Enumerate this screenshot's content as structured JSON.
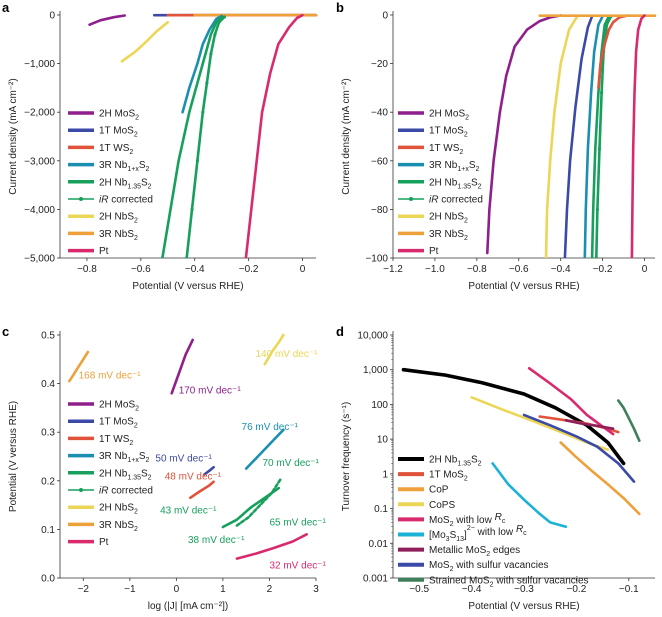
{
  "colors": {
    "2H MoS2": "#8e1f8c",
    "1T MoS2": "#3b4aa6",
    "1T WS2": "#e0523a",
    "3R Nb1+xS2": "#1a8fb0",
    "2H Nb1.35S2": "#17a05c",
    "iR corrected": "#17a05c",
    "2H NbS2": "#ecd657",
    "3R NbS2": "#eea03a",
    "Pt": "#d92a6e",
    "black": "#000000",
    "CoPS": "#ecd657",
    "Mo3S13": "#1ab3d6",
    "Metallic edges": "#8e1f5a",
    "Strained": "#3f7f5a"
  },
  "chart_data": [
    {
      "panel": "a",
      "type": "line",
      "xlabel": "Potential (V versus RHE)",
      "ylabel": "Current density (mA cm⁻²)",
      "xlim": [
        -0.9,
        0.05
      ],
      "ylim": [
        -5000,
        0
      ],
      "xticks": [
        -0.8,
        -0.6,
        -0.4,
        -0.2,
        0
      ],
      "xtick_labels": [
        "−0.8",
        "−0.6",
        "−0.4",
        "−0.2",
        "0"
      ],
      "yticks": [
        0,
        -1000,
        -2000,
        -3000,
        -4000,
        -5000
      ],
      "ytick_labels": [
        "0",
        "−1,000",
        "−2,000",
        "−3,000",
        "−4,000",
        "−5,000"
      ],
      "legend": [
        "2H MoS2",
        "1T MoS2",
        "1T WS2",
        "3R Nb1+xS2",
        "2H Nb1.35S2",
        "iR corrected",
        "2H NbS2",
        "3R NbS2",
        "Pt"
      ],
      "legend_labels": [
        "2H MoS",
        "1T MoS",
        "1T WS",
        "3R Nb",
        "2H Nb",
        "iR corrected",
        "2H NbS",
        "3R NbS",
        "Pt"
      ],
      "series": [
        {
          "name": "2H MoS2",
          "x": [
            -0.79,
            -0.75,
            -0.7,
            -0.66
          ],
          "y": [
            -200,
            -110,
            -45,
            -10
          ]
        },
        {
          "name": "1T MoS2",
          "x": [
            -0.55,
            -0.4,
            -0.25,
            -0.1,
            0.05
          ],
          "y": [
            -5,
            -5,
            -5,
            -5,
            -5
          ]
        },
        {
          "name": "1T WS2",
          "x": [
            -0.5,
            -0.3,
            -0.1,
            0.05
          ],
          "y": [
            -5,
            -5,
            -5,
            -5
          ]
        },
        {
          "name": "2H NbS2",
          "x": [
            -0.67,
            -0.62,
            -0.58,
            -0.54,
            -0.5
          ],
          "y": [
            -950,
            -750,
            -550,
            -330,
            -150
          ]
        },
        {
          "name": "3R NbS2",
          "x": [
            -0.4,
            -0.2,
            0,
            0.05
          ],
          "y": [
            -3,
            -3,
            -3,
            -3
          ]
        },
        {
          "name": "3R Nb1+xS2",
          "x": [
            -0.445,
            -0.42,
            -0.39,
            -0.37,
            -0.345,
            -0.32,
            -0.3
          ],
          "y": [
            -2000,
            -1500,
            -1000,
            -600,
            -300,
            -80,
            -20
          ]
        },
        {
          "name": "2H Nb1.35S2",
          "x": [
            -0.52,
            -0.49,
            -0.46,
            -0.42,
            -0.39,
            -0.36,
            -0.34,
            -0.32,
            -0.3
          ],
          "y": [
            -5000,
            -4000,
            -3000,
            -2000,
            -1400,
            -800,
            -400,
            -150,
            -40
          ]
        },
        {
          "name": "iR corrected",
          "x": [
            -0.43,
            -0.41,
            -0.39,
            -0.37,
            -0.355,
            -0.34,
            -0.325,
            -0.31,
            -0.29
          ],
          "y": [
            -5000,
            -4000,
            -3000,
            -2000,
            -1400,
            -800,
            -400,
            -150,
            -40
          ]
        },
        {
          "name": "Pt",
          "x": [
            -0.21,
            -0.19,
            -0.17,
            -0.15,
            -0.12,
            -0.09,
            -0.05,
            -0.02,
            0.0
          ],
          "y": [
            -5000,
            -4000,
            -3000,
            -2000,
            -1200,
            -600,
            -250,
            -60,
            -5
          ]
        }
      ]
    },
    {
      "panel": "b",
      "type": "line",
      "xlabel": "Potential (V versus RHE)",
      "ylabel": "Current density (mA cm⁻²)",
      "xlim": [
        -1.2,
        0.05
      ],
      "ylim": [
        -100,
        0
      ],
      "xticks": [
        -1.2,
        -1.0,
        -0.8,
        -0.6,
        -0.4,
        -0.2,
        0
      ],
      "xtick_labels": [
        "−1.2",
        "−1.0",
        "−0.8",
        "−0.6",
        "−0.4",
        "−0.2",
        "0"
      ],
      "yticks": [
        0,
        -20,
        -40,
        -60,
        -80,
        -100
      ],
      "ytick_labels": [
        "0",
        "−20",
        "−40",
        "−60",
        "−80",
        "−100"
      ],
      "legend": [
        "2H MoS2",
        "1T MoS2",
        "1T WS2",
        "3R Nb1+xS2",
        "2H Nb1.35S2",
        "iR corrected",
        "2H NbS2",
        "3R NbS2",
        "Pt"
      ],
      "legend_labels": [
        "2H MoS",
        "1T MoS",
        "1T WS",
        "3R Nb",
        "2H Nb",
        "iR corrected",
        "2H NbS",
        "3R NbS",
        "Pt"
      ],
      "series": [
        {
          "name": "2H MoS2",
          "x": [
            -0.75,
            -0.74,
            -0.72,
            -0.69,
            -0.66,
            -0.62,
            -0.56,
            -0.5,
            -0.45,
            -0.4
          ],
          "y": [
            -98,
            -80,
            -60,
            -40,
            -25,
            -13,
            -6,
            -2.5,
            -1,
            -0.2
          ]
        },
        {
          "name": "2H NbS2",
          "x": [
            -0.47,
            -0.465,
            -0.45,
            -0.43,
            -0.4,
            -0.36,
            -0.32
          ],
          "y": [
            -100,
            -80,
            -60,
            -40,
            -20,
            -6,
            -0.5
          ]
        },
        {
          "name": "1T MoS2",
          "x": [
            -0.38,
            -0.37,
            -0.355,
            -0.33,
            -0.3,
            -0.27,
            -0.25
          ],
          "y": [
            -100,
            -80,
            -60,
            -38,
            -18,
            -5,
            -0.5
          ]
        },
        {
          "name": "3R Nb1+xS2",
          "x": [
            -0.285,
            -0.28,
            -0.27,
            -0.255,
            -0.24,
            -0.22,
            -0.2
          ],
          "y": [
            -100,
            -80,
            -55,
            -32,
            -15,
            -4,
            -0.5
          ]
        },
        {
          "name": "2H Nb1.35S2",
          "x": [
            -0.25,
            -0.245,
            -0.235,
            -0.22,
            -0.205,
            -0.19,
            -0.17
          ],
          "y": [
            -100,
            -80,
            -55,
            -32,
            -15,
            -4,
            -0.5
          ]
        },
        {
          "name": "iR corrected",
          "x": [
            -0.23,
            -0.225,
            -0.215,
            -0.205,
            -0.195,
            -0.18,
            -0.16
          ],
          "y": [
            -100,
            -80,
            -55,
            -32,
            -15,
            -4,
            -0.5
          ]
        },
        {
          "name": "1T WS2",
          "x": [
            -0.22,
            -0.21,
            -0.19,
            -0.17,
            -0.15,
            -0.12,
            -0.08
          ],
          "y": [
            -30,
            -20,
            -12,
            -6,
            -3,
            -1,
            -0.2
          ]
        },
        {
          "name": "3R NbS2",
          "x": [
            -0.5,
            -0.3,
            -0.1,
            0.05
          ],
          "y": [
            -0.3,
            -0.3,
            -0.3,
            -0.3
          ]
        },
        {
          "name": "Pt",
          "x": [
            -0.06,
            -0.058,
            -0.054,
            -0.048,
            -0.04,
            -0.03,
            -0.015,
            0.0
          ],
          "y": [
            -100,
            -80,
            -55,
            -32,
            -15,
            -6,
            -1.5,
            -0.2
          ]
        }
      ]
    },
    {
      "panel": "c",
      "type": "line",
      "xlabel": "log (|J| [mA cm⁻²])",
      "ylabel": "Potential (V versus RHE)",
      "xlim": [
        -2.5,
        3
      ],
      "ylim": [
        0,
        0.5
      ],
      "xticks": [
        -2,
        -1,
        0,
        1,
        2,
        3
      ],
      "xtick_labels": [
        "−2",
        "−1",
        "0",
        "1",
        "2",
        "3"
      ],
      "yticks": [
        0,
        0.1,
        0.2,
        0.3,
        0.4,
        0.5
      ],
      "ytick_labels": [
        "0.0",
        "0.1",
        "0.2",
        "0.3",
        "0.4",
        "0.5"
      ],
      "legend": [
        "2H MoS2",
        "1T MoS2",
        "1T WS2",
        "3R Nb1+xS2",
        "2H Nb1.35S2",
        "iR corrected",
        "2H NbS2",
        "3R NbS2",
        "Pt"
      ],
      "legend_labels": [
        "2H MoS",
        "1T MoS",
        "1T WS",
        "3R Nb",
        "2H Nb",
        "iR corrected",
        "2H NbS",
        "3R NbS",
        "Pt"
      ],
      "series": [
        {
          "name": "3R NbS2",
          "x": [
            -2.3,
            -2.2,
            -2.1,
            -2.0,
            -1.9
          ],
          "y": [
            0.405,
            0.42,
            0.435,
            0.45,
            0.465
          ]
        },
        {
          "name": "2H MoS2",
          "x": [
            -0.1,
            0.05,
            0.2,
            0.35
          ],
          "y": [
            0.38,
            0.42,
            0.46,
            0.49
          ]
        },
        {
          "name": "2H NbS2",
          "x": [
            1.9,
            2.05,
            2.2,
            2.3
          ],
          "y": [
            0.44,
            0.465,
            0.485,
            0.5
          ]
        },
        {
          "name": "1T MoS2",
          "x": [
            0.6,
            0.7,
            0.8
          ],
          "y": [
            0.213,
            0.22,
            0.228
          ]
        },
        {
          "name": "1T WS2",
          "x": [
            0.3,
            0.5,
            0.7,
            0.8
          ],
          "y": [
            0.165,
            0.178,
            0.19,
            0.198
          ]
        },
        {
          "name": "3R Nb1+xS2",
          "x": [
            1.5,
            1.8,
            2.1,
            2.3
          ],
          "y": [
            0.225,
            0.255,
            0.285,
            0.305
          ]
        },
        {
          "name": "2H Nb1.35S2",
          "x": [
            1.0,
            1.3,
            1.6,
            1.9,
            2.2
          ],
          "y": [
            0.105,
            0.12,
            0.145,
            0.165,
            0.185
          ]
        },
        {
          "name": "iR corrected",
          "x": [
            1.3,
            1.55,
            1.8,
            2.05,
            2.25
          ],
          "y": [
            0.108,
            0.125,
            0.15,
            0.175,
            0.205
          ]
        },
        {
          "name": "Pt",
          "x": [
            1.3,
            1.7,
            2.1,
            2.5,
            2.8
          ],
          "y": [
            0.04,
            0.05,
            0.062,
            0.075,
            0.09
          ]
        }
      ],
      "annotations": [
        {
          "text": "168 mV dec⁻¹",
          "series": "3R NbS2",
          "x": -2.1,
          "y": 0.41
        },
        {
          "text": "170 mV dec⁻¹",
          "series": "2H MoS2",
          "x": 0.05,
          "y": 0.38
        },
        {
          "text": "140 mV dec⁻¹",
          "series": "2H NbS2",
          "x": 1.7,
          "y": 0.455
        },
        {
          "text": "76 mV dec⁻¹",
          "series": "3R Nb1+xS2",
          "x": 1.4,
          "y": 0.305
        },
        {
          "text": "50 mV dec⁻¹",
          "series": "1T MoS2",
          "x": -0.45,
          "y": 0.24
        },
        {
          "text": "48 mV dec⁻¹",
          "series": "1T WS2",
          "x": -0.25,
          "y": 0.203
        },
        {
          "text": "70 mV dec⁻¹",
          "series": "2H Nb1.35S2",
          "x": 1.85,
          "y": 0.23
        },
        {
          "text": "43 mV dec⁻¹",
          "series": "2H Nb1.35S2",
          "x": -0.35,
          "y": 0.133
        },
        {
          "text": "65 mV dec⁻¹",
          "series": "2H Nb1.35S2",
          "x": 2.0,
          "y": 0.108
        },
        {
          "text": "38 mV dec⁻¹",
          "series": "2H Nb1.35S2",
          "x": 0.25,
          "y": 0.072
        },
        {
          "text": "32 mV dec⁻¹",
          "series": "Pt",
          "x": 2.0,
          "y": 0.02
        }
      ]
    },
    {
      "panel": "d",
      "type": "line",
      "xlabel": "Potential (V versus RHE)",
      "ylabel": "Turnover frequency (s⁻¹)",
      "xlim": [
        -0.55,
        -0.05
      ],
      "ylim_log": [
        0.001,
        10000
      ],
      "xticks": [
        -0.5,
        -0.4,
        -0.3,
        -0.2,
        -0.1
      ],
      "xtick_labels": [
        "−0.5",
        "−0.4",
        "−0.3",
        "−0.2",
        "−0.1"
      ],
      "yticks": [
        0.001,
        0.01,
        0.1,
        1,
        10,
        100,
        1000,
        10000
      ],
      "ytick_labels": [
        "0.001",
        "0.01",
        "0.1",
        "1",
        "10",
        "100",
        "1,000",
        "10,000"
      ],
      "legend": [
        "2H Nb1.35S2",
        "1T MoS2",
        "CoP",
        "CoPS",
        "MoS2 with low Rc",
        "[Mo3S13]2- with low Rc",
        "Metallic MoS2 edges",
        "MoS2 with sulfur vacancies",
        "Strained MoS2 with sulfur vacancies"
      ],
      "legend_labels": [
        "2H Nb",
        "1T MoS",
        "CoP",
        "CoPS",
        "MoS",
        "[Mo",
        "Metallic MoS",
        "MoS",
        "Strained MoS"
      ],
      "series": [
        {
          "name": "2H Nb1.35S2",
          "x": [
            -0.53,
            -0.45,
            -0.38,
            -0.3,
            -0.24,
            -0.18,
            -0.14,
            -0.11
          ],
          "y": [
            1000,
            700,
            420,
            200,
            80,
            25,
            8,
            2
          ]
        },
        {
          "name": "1T MoS2",
          "x": [
            -0.27,
            -0.22,
            -0.18,
            -0.14,
            -0.12
          ],
          "y": [
            45,
            35,
            28,
            20,
            16
          ]
        },
        {
          "name": "CoP",
          "x": [
            -0.23,
            -0.2,
            -0.17,
            -0.14,
            -0.11,
            -0.08
          ],
          "y": [
            8,
            3,
            1.2,
            0.5,
            0.2,
            0.07
          ]
        },
        {
          "name": "CoPS",
          "x": [
            -0.4,
            -0.34,
            -0.28,
            -0.22,
            -0.17,
            -0.14
          ],
          "y": [
            160,
            70,
            32,
            14,
            7,
            5
          ]
        },
        {
          "name": "MoS2 with low Rc",
          "x": [
            -0.29,
            -0.25,
            -0.21,
            -0.18,
            -0.15,
            -0.13
          ],
          "y": [
            1100,
            400,
            140,
            50,
            23,
            14
          ]
        },
        {
          "name": "[Mo3S13]2- with low Rc",
          "x": [
            -0.36,
            -0.33,
            -0.3,
            -0.27,
            -0.25,
            -0.22
          ],
          "y": [
            2,
            0.5,
            0.18,
            0.07,
            0.04,
            0.03
          ]
        },
        {
          "name": "Metallic MoS2 edges",
          "x": [
            -0.22,
            -0.19,
            -0.16,
            -0.13
          ],
          "y": [
            35,
            28,
            24,
            20
          ]
        },
        {
          "name": "MoS2 with sulfur vacancies",
          "x": [
            -0.3,
            -0.25,
            -0.2,
            -0.16,
            -0.12,
            -0.09
          ],
          "y": [
            50,
            25,
            12,
            6,
            2,
            0.6
          ]
        },
        {
          "name": "Strained MoS2 with sulfur vacancies",
          "x": [
            -0.12,
            -0.11,
            -0.1,
            -0.09,
            -0.08
          ],
          "y": [
            130,
            80,
            40,
            20,
            9
          ]
        }
      ]
    }
  ]
}
